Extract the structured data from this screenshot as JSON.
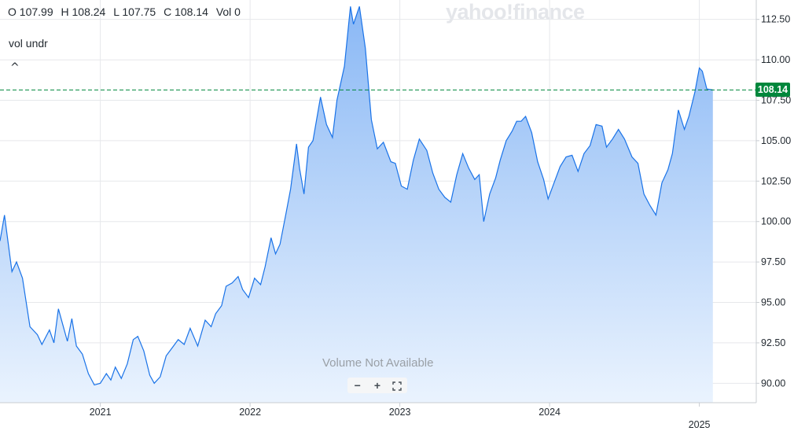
{
  "quote": {
    "open_label": "O 107.99",
    "high_label": "H 108.24",
    "low_label": "L 107.75",
    "close_label": "C 108.14",
    "volume_label": "Vol 0"
  },
  "study_label": "vol undr",
  "collapse_glyph": "^",
  "watermark": "yahoo!finance",
  "volume_message": "Volume Not Available",
  "zoom_controls": {
    "minus": "−",
    "plus": "+",
    "fullscreen_icon": "fullscreen-icon"
  },
  "current_price_tag": "108.14",
  "colors": {
    "line": "#1a73e8",
    "fill_top": "#8ab8f5",
    "fill_bottom": "#eaf3fe",
    "price_tag": "#00873c",
    "dashed_line": "#00873c",
    "grid": "#e6e8eb"
  },
  "chart_data": {
    "type": "area",
    "title": "",
    "xlabel": "",
    "ylabel": "",
    "x_ticks": [
      "2021",
      "2022",
      "2023",
      "2024",
      "2025"
    ],
    "y_ticks": [
      "90.00",
      "92.50",
      "95.00",
      "97.50",
      "100.00",
      "102.50",
      "105.00",
      "107.50",
      "110.00",
      "112.50"
    ],
    "ylim": [
      88.8,
      113.7
    ],
    "grid": true,
    "current_price": 108.14,
    "series": [
      {
        "values": [
          [
            2020.33,
            98.8
          ],
          [
            2020.36,
            100.4
          ],
          [
            2020.41,
            96.9
          ],
          [
            2020.44,
            97.5
          ],
          [
            2020.48,
            96.5
          ],
          [
            2020.53,
            93.5
          ],
          [
            2020.58,
            93.0
          ],
          [
            2020.61,
            92.4
          ],
          [
            2020.66,
            93.3
          ],
          [
            2020.69,
            92.5
          ],
          [
            2020.72,
            94.6
          ],
          [
            2020.75,
            93.6
          ],
          [
            2020.78,
            92.6
          ],
          [
            2020.81,
            94.0
          ],
          [
            2020.84,
            92.3
          ],
          [
            2020.88,
            91.8
          ],
          [
            2020.92,
            90.6
          ],
          [
            2020.96,
            89.9
          ],
          [
            2021.0,
            90.0
          ],
          [
            2021.04,
            90.6
          ],
          [
            2021.07,
            90.2
          ],
          [
            2021.1,
            91.0
          ],
          [
            2021.14,
            90.3
          ],
          [
            2021.18,
            91.2
          ],
          [
            2021.22,
            92.7
          ],
          [
            2021.25,
            92.9
          ],
          [
            2021.29,
            92.0
          ],
          [
            2021.33,
            90.5
          ],
          [
            2021.36,
            90.0
          ],
          [
            2021.4,
            90.4
          ],
          [
            2021.44,
            91.7
          ],
          [
            2021.48,
            92.2
          ],
          [
            2021.52,
            92.7
          ],
          [
            2021.56,
            92.4
          ],
          [
            2021.6,
            93.4
          ],
          [
            2021.65,
            92.3
          ],
          [
            2021.7,
            93.9
          ],
          [
            2021.74,
            93.5
          ],
          [
            2021.77,
            94.3
          ],
          [
            2021.81,
            94.8
          ],
          [
            2021.84,
            96.0
          ],
          [
            2021.88,
            96.2
          ],
          [
            2021.92,
            96.6
          ],
          [
            2021.95,
            95.8
          ],
          [
            2021.99,
            95.3
          ],
          [
            2022.03,
            96.5
          ],
          [
            2022.07,
            96.1
          ],
          [
            2022.1,
            97.2
          ],
          [
            2022.14,
            99.0
          ],
          [
            2022.17,
            98.0
          ],
          [
            2022.2,
            98.6
          ],
          [
            2022.24,
            100.5
          ],
          [
            2022.27,
            102.0
          ],
          [
            2022.31,
            104.8
          ],
          [
            2022.33,
            103.3
          ],
          [
            2022.36,
            101.7
          ],
          [
            2022.39,
            104.6
          ],
          [
            2022.42,
            105.0
          ],
          [
            2022.47,
            107.7
          ],
          [
            2022.51,
            106.0
          ],
          [
            2022.55,
            105.2
          ],
          [
            2022.58,
            107.5
          ],
          [
            2022.63,
            109.6
          ],
          [
            2022.67,
            113.3
          ],
          [
            2022.69,
            112.2
          ],
          [
            2022.73,
            113.3
          ],
          [
            2022.77,
            110.7
          ],
          [
            2022.81,
            106.3
          ],
          [
            2022.85,
            104.5
          ],
          [
            2022.89,
            104.9
          ],
          [
            2022.94,
            103.7
          ],
          [
            2022.97,
            103.6
          ],
          [
            2023.01,
            102.2
          ],
          [
            2023.05,
            102.0
          ],
          [
            2023.09,
            103.8
          ],
          [
            2023.13,
            105.1
          ],
          [
            2023.18,
            104.4
          ],
          [
            2023.22,
            103.0
          ],
          [
            2023.26,
            102.0
          ],
          [
            2023.3,
            101.5
          ],
          [
            2023.34,
            101.2
          ],
          [
            2023.38,
            102.9
          ],
          [
            2023.42,
            104.2
          ],
          [
            2023.46,
            103.3
          ],
          [
            2023.5,
            102.6
          ],
          [
            2023.53,
            102.9
          ],
          [
            2023.56,
            100.0
          ],
          [
            2023.6,
            101.7
          ],
          [
            2023.64,
            102.7
          ],
          [
            2023.67,
            103.8
          ],
          [
            2023.71,
            105.0
          ],
          [
            2023.75,
            105.6
          ],
          [
            2023.78,
            106.2
          ],
          [
            2023.81,
            106.2
          ],
          [
            2023.84,
            106.5
          ],
          [
            2023.88,
            105.5
          ],
          [
            2023.92,
            103.7
          ],
          [
            2023.96,
            102.6
          ],
          [
            2023.99,
            101.4
          ],
          [
            2024.03,
            102.4
          ],
          [
            2024.07,
            103.4
          ],
          [
            2024.11,
            104.0
          ],
          [
            2024.15,
            104.1
          ],
          [
            2024.19,
            103.1
          ],
          [
            2024.23,
            104.2
          ],
          [
            2024.27,
            104.7
          ],
          [
            2024.31,
            106.0
          ],
          [
            2024.35,
            105.9
          ],
          [
            2024.38,
            104.6
          ],
          [
            2024.42,
            105.1
          ],
          [
            2024.46,
            105.7
          ],
          [
            2024.5,
            105.1
          ],
          [
            2024.55,
            104.0
          ],
          [
            2024.59,
            103.6
          ],
          [
            2024.63,
            101.7
          ],
          [
            2024.67,
            101.0
          ],
          [
            2024.71,
            100.4
          ],
          [
            2024.75,
            102.4
          ],
          [
            2024.79,
            103.2
          ],
          [
            2024.82,
            104.2
          ],
          [
            2024.86,
            106.9
          ],
          [
            2024.9,
            105.7
          ],
          [
            2024.93,
            106.5
          ],
          [
            2024.97,
            108.0
          ],
          [
            2025.0,
            109.5
          ],
          [
            2025.02,
            109.3
          ],
          [
            2025.05,
            108.2
          ],
          [
            2025.09,
            108.14
          ]
        ]
      }
    ]
  }
}
